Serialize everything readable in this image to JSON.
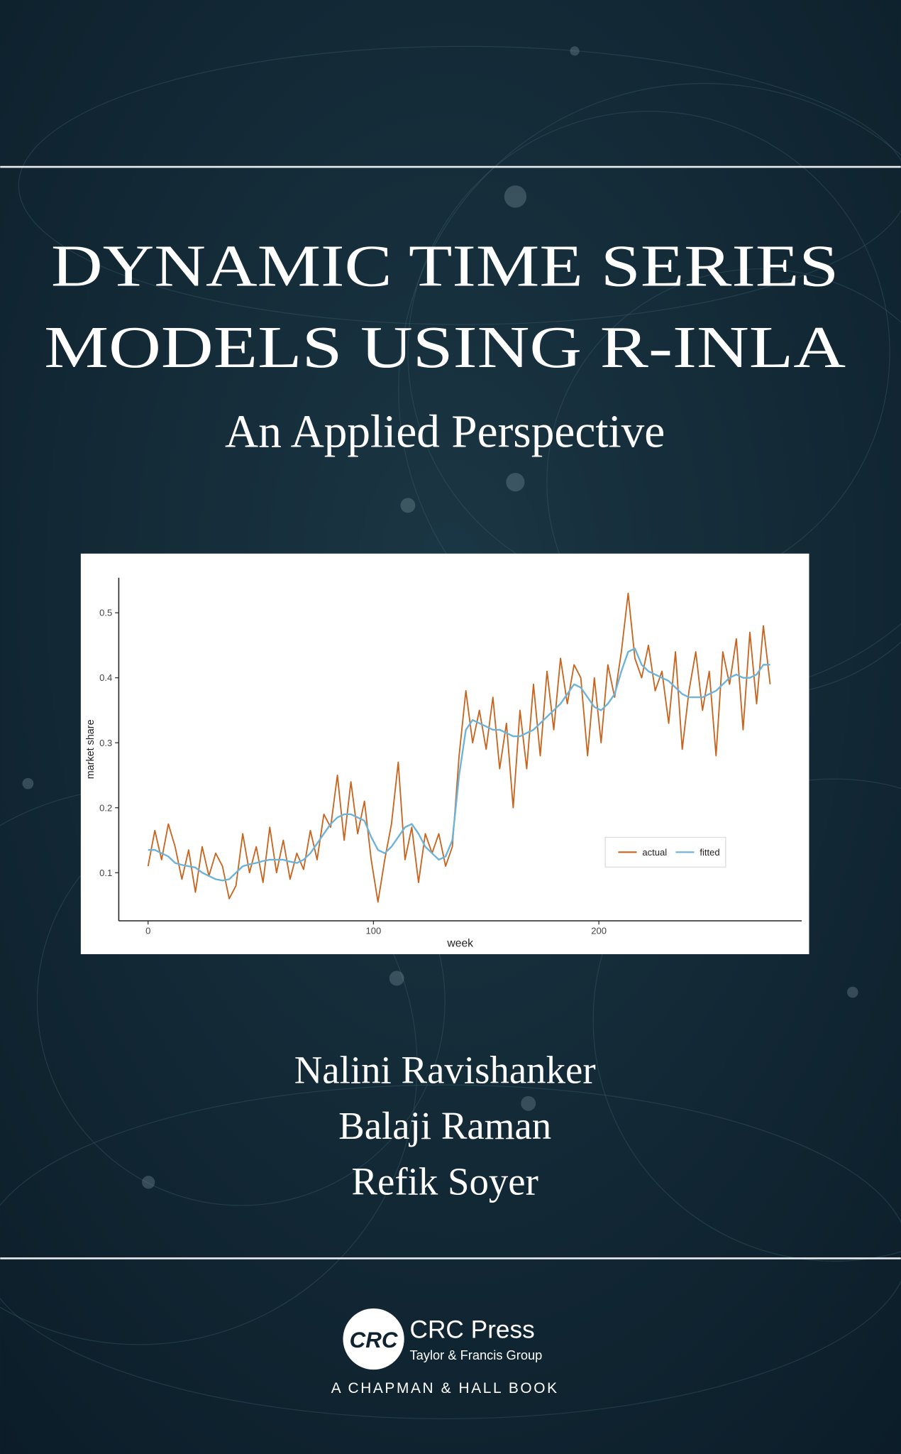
{
  "cover": {
    "title": [
      "DYNAMIC TIME SERIES",
      "MODELS USING R-INLA"
    ],
    "subtitle": "An Applied Perspective",
    "authors": [
      "Nalini Ravishanker",
      "Balaji Raman",
      "Refik Soyer"
    ],
    "publisher": {
      "logo": "CRC",
      "name": "CRC Press",
      "group": "Taylor & Francis Group",
      "series": "A CHAPMAN & HALL BOOK"
    }
  },
  "chart_data": {
    "type": "line",
    "x_label": "week",
    "y_label": "market share",
    "x": [
      0,
      3,
      6,
      9,
      12,
      15,
      18,
      21,
      24,
      27,
      30,
      33,
      36,
      39,
      42,
      45,
      48,
      51,
      54,
      57,
      60,
      63,
      66,
      69,
      72,
      75,
      78,
      81,
      84,
      87,
      90,
      93,
      96,
      99,
      102,
      105,
      108,
      111,
      114,
      117,
      120,
      123,
      126,
      129,
      132,
      135,
      138,
      141,
      144,
      147,
      150,
      153,
      156,
      159,
      162,
      165,
      168,
      171,
      174,
      177,
      180,
      183,
      186,
      189,
      192,
      195,
      198,
      201,
      204,
      207,
      210,
      213,
      216,
      219,
      222,
      225,
      228,
      231,
      234,
      237,
      240,
      243,
      246,
      249,
      252,
      255,
      258,
      261,
      264,
      267,
      270,
      273,
      276
    ],
    "series": [
      {
        "name": "actual",
        "color": "#c8641e",
        "values": [
          0.11,
          0.165,
          0.12,
          0.175,
          0.14,
          0.09,
          0.135,
          0.07,
          0.14,
          0.095,
          0.13,
          0.11,
          0.06,
          0.08,
          0.16,
          0.1,
          0.14,
          0.085,
          0.17,
          0.1,
          0.15,
          0.09,
          0.13,
          0.105,
          0.165,
          0.12,
          0.19,
          0.17,
          0.25,
          0.15,
          0.24,
          0.16,
          0.21,
          0.12,
          0.055,
          0.12,
          0.175,
          0.27,
          0.12,
          0.17,
          0.085,
          0.16,
          0.13,
          0.16,
          0.11,
          0.14,
          0.28,
          0.38,
          0.3,
          0.35,
          0.29,
          0.37,
          0.26,
          0.33,
          0.2,
          0.35,
          0.26,
          0.39,
          0.28,
          0.41,
          0.32,
          0.43,
          0.36,
          0.42,
          0.4,
          0.28,
          0.4,
          0.3,
          0.42,
          0.37,
          0.44,
          0.53,
          0.43,
          0.4,
          0.45,
          0.38,
          0.41,
          0.33,
          0.44,
          0.29,
          0.38,
          0.44,
          0.35,
          0.41,
          0.28,
          0.44,
          0.39,
          0.46,
          0.32,
          0.47,
          0.36,
          0.48,
          0.39
        ]
      },
      {
        "name": "fitted",
        "color": "#6bb3d9",
        "values": [
          0.135,
          0.135,
          0.13,
          0.125,
          0.115,
          0.112,
          0.11,
          0.108,
          0.1,
          0.095,
          0.09,
          0.088,
          0.09,
          0.1,
          0.11,
          0.113,
          0.115,
          0.118,
          0.12,
          0.12,
          0.12,
          0.117,
          0.115,
          0.12,
          0.13,
          0.145,
          0.16,
          0.175,
          0.185,
          0.19,
          0.19,
          0.185,
          0.18,
          0.155,
          0.135,
          0.13,
          0.14,
          0.155,
          0.17,
          0.175,
          0.16,
          0.14,
          0.13,
          0.12,
          0.125,
          0.15,
          0.25,
          0.32,
          0.335,
          0.33,
          0.325,
          0.32,
          0.32,
          0.315,
          0.31,
          0.31,
          0.315,
          0.32,
          0.33,
          0.34,
          0.35,
          0.36,
          0.375,
          0.39,
          0.385,
          0.37,
          0.355,
          0.35,
          0.36,
          0.375,
          0.41,
          0.44,
          0.445,
          0.42,
          0.41,
          0.405,
          0.4,
          0.395,
          0.385,
          0.375,
          0.37,
          0.37,
          0.37,
          0.375,
          0.38,
          0.39,
          0.4,
          0.405,
          0.4,
          0.4,
          0.405,
          0.42,
          0.42
        ]
      }
    ],
    "xlim": [
      -13,
      290
    ],
    "ylim": [
      0.026,
      0.554
    ],
    "xticks": [
      0,
      100,
      200
    ],
    "yticks": [
      0.1,
      0.2,
      0.3,
      0.4,
      0.5
    ],
    "legend": "bottom-right",
    "grid": false
  }
}
